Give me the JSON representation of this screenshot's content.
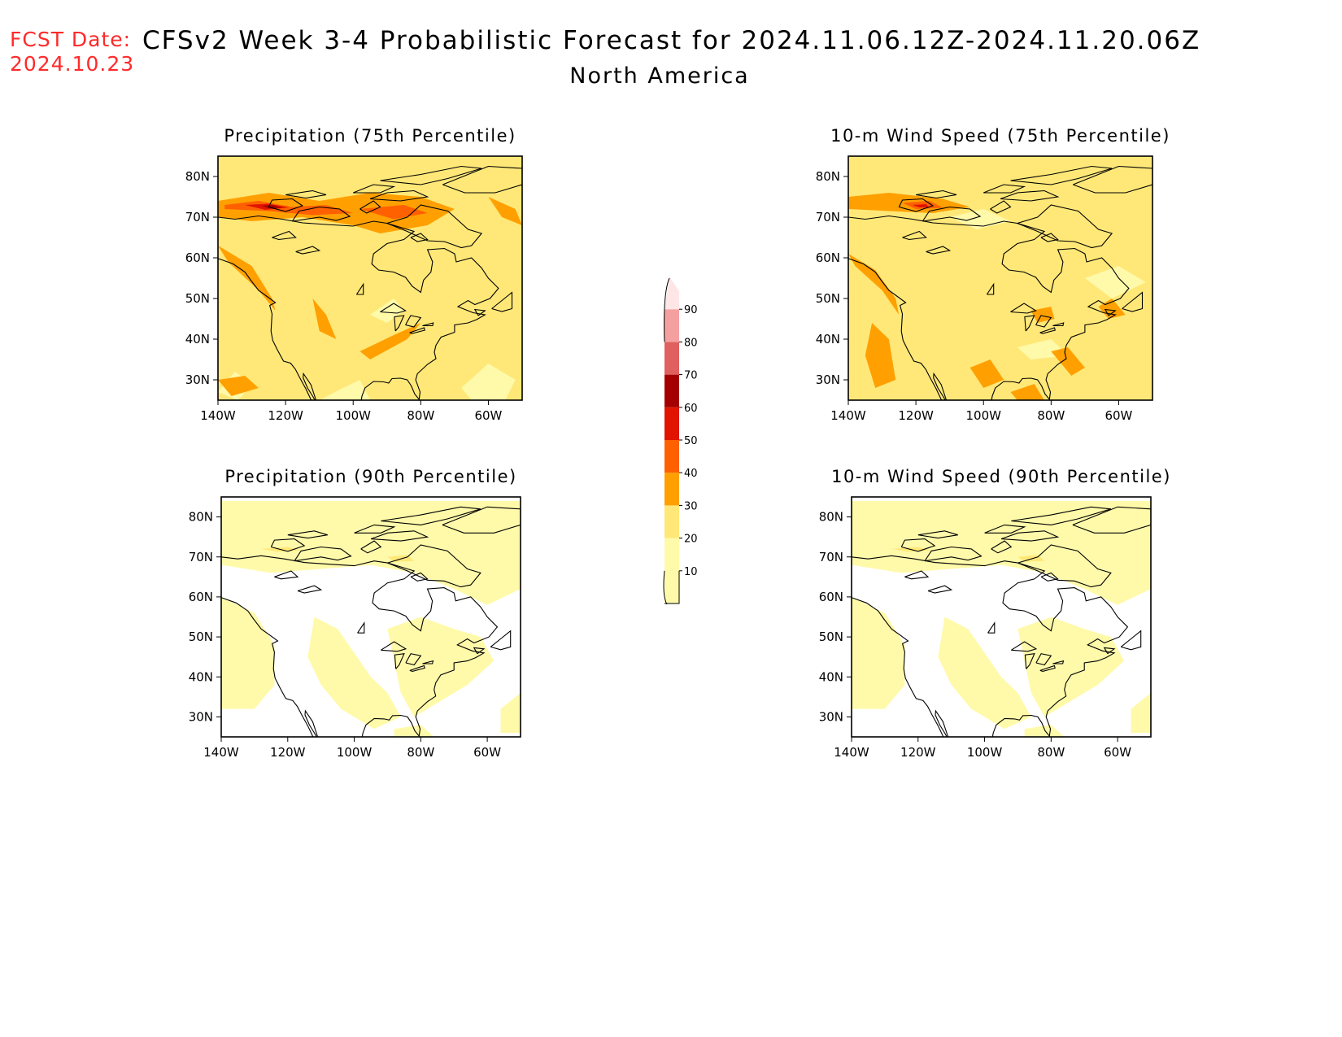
{
  "header": {
    "fcst_label": "FCST Date:",
    "fcst_date": "2024.10.23",
    "title": "CFSv2 Week 3-4 Probabilistic Forecast for 2024.11.06.12Z-2024.11.20.06Z",
    "region": "North America"
  },
  "panels": [
    {
      "id": "precip75",
      "title": "Precipitation (75th Percentile)",
      "fill": "heavy"
    },
    {
      "id": "wind75",
      "title": "10-m Wind Speed (75th Percentile)",
      "fill": "medium"
    },
    {
      "id": "precip90",
      "title": "Precipitation (90th Percentile)",
      "fill": "light"
    },
    {
      "id": "wind90",
      "title": "10-m Wind Speed (90th Percentile)",
      "fill": "light"
    }
  ],
  "axes": {
    "lon_labels": [
      "140W",
      "120W",
      "100W",
      "80W",
      "60W"
    ],
    "lat_labels": [
      "80N",
      "70N",
      "60N",
      "50N",
      "40N",
      "30N"
    ],
    "lon_range": [
      -140,
      -50
    ],
    "lat_range": [
      25,
      85
    ]
  },
  "colorbar": {
    "labels": [
      "10",
      "20",
      "30",
      "40",
      "50",
      "60",
      "70",
      "80",
      "90"
    ],
    "colors": [
      "#fffaaa",
      "#ffe878",
      "#ffa000",
      "#ff6000",
      "#e11400",
      "#a50000",
      "#e06060",
      "#f5a0a0",
      "#ffe6e6"
    ]
  }
}
